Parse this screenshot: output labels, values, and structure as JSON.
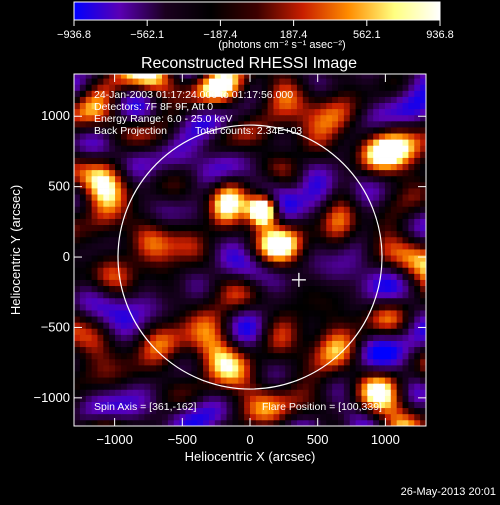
{
  "chart_data": {
    "type": "heatmap",
    "title": "Reconstructed RHESSI Image",
    "xlabel": "Heliocentric X (arcsec)",
    "ylabel": "Heliocentric Y (arcsec)",
    "xlim": [
      -1300,
      1300
    ],
    "ylim": [
      -1200,
      1300
    ],
    "xticks": [
      -1000,
      -500,
      0,
      500,
      1000
    ],
    "yticks": [
      -1000,
      -500,
      0,
      500,
      1000
    ],
    "xtick_labels": [
      "−1000",
      "−500",
      "0",
      "500",
      "1000"
    ],
    "ytick_labels": [
      "−1000",
      "−500",
      "0",
      "500",
      "1000"
    ],
    "colorbar": {
      "min": -936.8,
      "max": 936.8,
      "ticks": [
        -936.8,
        -562.1,
        -187.4,
        187.4,
        562.1,
        936.8
      ],
      "tick_labels": [
        "−936.8",
        "−562.1",
        "−187.4",
        "187.4",
        "562.1",
        "936.8"
      ],
      "units": "(photons cm⁻² s⁻¹ asec⁻²)",
      "colors": [
        "#0000ff",
        "#5a00b4",
        "#1a001e",
        "#000000",
        "#3c0000",
        "#c81e00",
        "#ff8c00",
        "#ffff80",
        "#ffffff"
      ]
    },
    "annotations": {
      "line1": "24-Jan-2003 01:17:24.000 to 01:17:56.000",
      "line2": "Detectors: 7F 8F 9F, Att 0",
      "line3": "Energy Range: 6.0 - 25.0 keV",
      "line4a": "Back Projection",
      "line4b": "Total counts: 2.34E+03",
      "spin_axis": "Spin Axis = [361,-162]",
      "flare_position": "Flare Position = [100,339]"
    },
    "solar_limb_radius": 975,
    "marker": {
      "type": "cross",
      "x": 361,
      "y": -162
    },
    "peak": {
      "x": 100,
      "y": 339
    }
  },
  "timestamp": "26-May-2013 20:01"
}
